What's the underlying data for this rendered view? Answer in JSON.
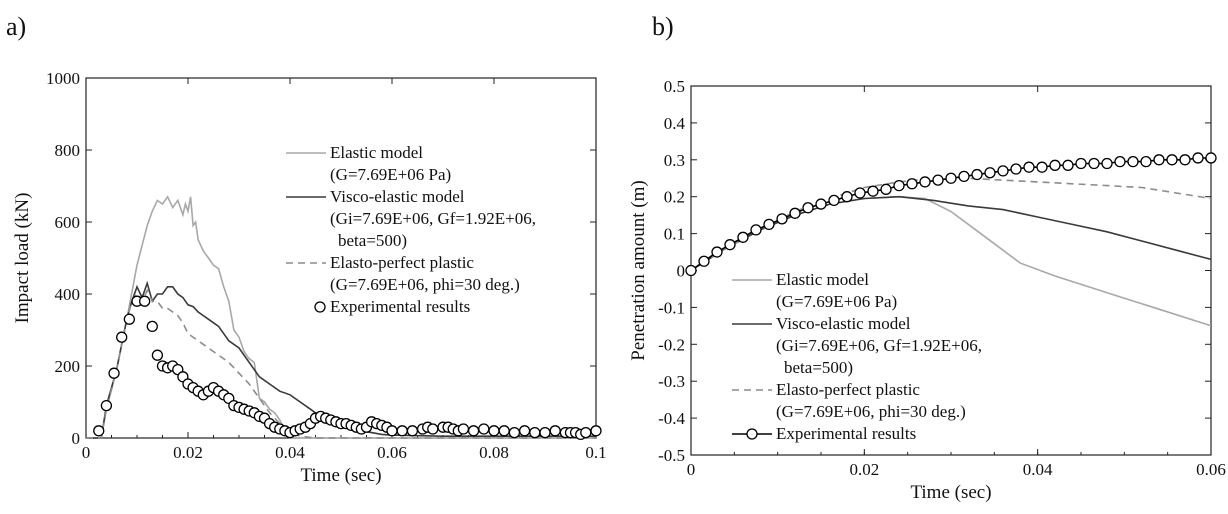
{
  "panels": [
    {
      "label": "a)"
    },
    {
      "label": "b)"
    }
  ],
  "chart_data": [
    {
      "type": "line",
      "xlabel": "Time (sec)",
      "ylabel": "Impact load (kN)",
      "xlim": [
        0,
        0.1
      ],
      "ylim": [
        0,
        1000
      ],
      "xticks": [
        0,
        0.02,
        0.04,
        0.06,
        0.08,
        0.1
      ],
      "xtick_labels": [
        "0",
        "0.02",
        "0.04",
        "0.06",
        "0.08",
        "0.1"
      ],
      "yticks": [
        0,
        200,
        400,
        600,
        800,
        1000
      ],
      "ytick_labels": [
        "0",
        "200",
        "400",
        "600",
        "800",
        "1000"
      ],
      "grid": false,
      "legend_position": "top-right",
      "legend": [
        {
          "series": 0,
          "lines": [
            "Elastic model",
            "(G=7.69E+06 Pa)"
          ]
        },
        {
          "series": 1,
          "lines": [
            "Visco-elastic model",
            "(Gi=7.69E+06, Gf=1.92E+06,",
            "beta=500)"
          ]
        },
        {
          "series": 2,
          "lines": [
            "Elasto-perfect plastic",
            "(G=7.69E+06, phi=30 deg.)"
          ]
        },
        {
          "series": 3,
          "lines": [
            "Experimental results"
          ]
        }
      ],
      "series": [
        {
          "name": "Elastic model",
          "color": "#a8a8a8",
          "style": "solid",
          "x": [
            0,
            0.003,
            0.004,
            0.006,
            0.008,
            0.01,
            0.012,
            0.013,
            0.014,
            0.015,
            0.016,
            0.017,
            0.018,
            0.019,
            0.0195,
            0.02,
            0.0205,
            0.021,
            0.0215,
            0.022,
            0.023,
            0.024,
            0.025,
            0.026,
            0.027,
            0.028,
            0.029,
            0.03,
            0.031,
            0.032,
            0.033,
            0.034,
            0.035,
            0.036,
            0.037,
            0.038,
            0.039,
            0.04,
            0.041,
            0.045,
            0.05,
            0.06,
            0.1
          ],
          "y": [
            0,
            0,
            80,
            190,
            330,
            480,
            590,
            630,
            660,
            650,
            670,
            640,
            660,
            620,
            650,
            630,
            670,
            590,
            600,
            550,
            520,
            500,
            480,
            470,
            420,
            380,
            300,
            280,
            240,
            220,
            210,
            110,
            100,
            80,
            70,
            50,
            20,
            0,
            0,
            0,
            0,
            0,
            0
          ]
        },
        {
          "name": "Visco-elastic model",
          "color": "#3a3a3a",
          "style": "solid",
          "x": [
            0,
            0.003,
            0.004,
            0.006,
            0.008,
            0.009,
            0.01,
            0.011,
            0.012,
            0.013,
            0.014,
            0.015,
            0.016,
            0.017,
            0.018,
            0.019,
            0.02,
            0.021,
            0.022,
            0.023,
            0.024,
            0.025,
            0.026,
            0.027,
            0.028,
            0.03,
            0.032,
            0.034,
            0.036,
            0.038,
            0.04,
            0.042,
            0.044,
            0.046,
            0.048,
            0.05,
            0.052,
            0.054,
            0.056,
            0.058,
            0.06,
            0.07,
            0.08,
            0.1
          ],
          "y": [
            0,
            0,
            90,
            190,
            330,
            380,
            420,
            390,
            430,
            380,
            400,
            400,
            420,
            420,
            400,
            390,
            370,
            365,
            350,
            340,
            330,
            320,
            310,
            290,
            270,
            250,
            210,
            170,
            150,
            130,
            120,
            100,
            80,
            60,
            45,
            40,
            30,
            20,
            15,
            10,
            8,
            5,
            5,
            5
          ]
        },
        {
          "name": "Elasto-perfect plastic",
          "color": "#8c8c8c",
          "style": "dashed",
          "x": [
            0,
            0.003,
            0.004,
            0.006,
            0.008,
            0.009,
            0.01,
            0.011,
            0.012,
            0.013,
            0.014,
            0.015,
            0.016,
            0.017,
            0.018,
            0.019,
            0.02,
            0.022,
            0.024,
            0.026,
            0.028,
            0.03,
            0.032,
            0.034,
            0.036,
            0.038,
            0.04,
            0.042,
            0.045,
            0.1
          ],
          "y": [
            0,
            0,
            80,
            190,
            330,
            380,
            400,
            380,
            410,
            380,
            380,
            360,
            360,
            350,
            340,
            320,
            290,
            270,
            250,
            230,
            210,
            180,
            150,
            110,
            70,
            40,
            15,
            5,
            0,
            0
          ]
        },
        {
          "name": "Experimental results",
          "color": "#000000",
          "style": "markers",
          "x": [
            0.0025,
            0.004,
            0.0055,
            0.007,
            0.0085,
            0.01,
            0.0115,
            0.013,
            0.014,
            0.015,
            0.016,
            0.017,
            0.018,
            0.019,
            0.02,
            0.021,
            0.022,
            0.023,
            0.024,
            0.025,
            0.026,
            0.027,
            0.028,
            0.029,
            0.03,
            0.031,
            0.032,
            0.033,
            0.034,
            0.035,
            0.036,
            0.037,
            0.038,
            0.039,
            0.04,
            0.041,
            0.042,
            0.043,
            0.044,
            0.045,
            0.046,
            0.047,
            0.048,
            0.049,
            0.05,
            0.051,
            0.052,
            0.053,
            0.054,
            0.055,
            0.056,
            0.057,
            0.058,
            0.059,
            0.06,
            0.062,
            0.064,
            0.066,
            0.067,
            0.068,
            0.07,
            0.071,
            0.072,
            0.073,
            0.074,
            0.076,
            0.078,
            0.08,
            0.082,
            0.084,
            0.086,
            0.088,
            0.09,
            0.092,
            0.094,
            0.095,
            0.096,
            0.097,
            0.098,
            0.1
          ],
          "y": [
            20,
            90,
            180,
            280,
            330,
            380,
            380,
            310,
            230,
            200,
            195,
            200,
            190,
            170,
            150,
            140,
            130,
            120,
            130,
            140,
            130,
            120,
            110,
            90,
            85,
            80,
            75,
            70,
            60,
            55,
            40,
            30,
            25,
            20,
            15,
            20,
            25,
            30,
            40,
            55,
            60,
            55,
            50,
            45,
            40,
            40,
            35,
            30,
            25,
            30,
            45,
            40,
            35,
            30,
            20,
            20,
            20,
            25,
            30,
            25,
            30,
            30,
            25,
            20,
            25,
            20,
            25,
            20,
            20,
            15,
            20,
            15,
            15,
            20,
            15,
            15,
            15,
            10,
            15,
            20
          ]
        }
      ]
    },
    {
      "type": "line",
      "xlabel": "Time (sec)",
      "ylabel": "Penetration amount (m)",
      "xlim": [
        0,
        0.06
      ],
      "ylim": [
        -0.5,
        0.5
      ],
      "xticks": [
        0,
        0.02,
        0.04,
        0.06
      ],
      "xtick_labels": [
        "0",
        "0.02",
        "0.04",
        "0.06"
      ],
      "yticks": [
        0.5,
        0.4,
        0.3,
        0.2,
        0.1,
        0,
        -0.1,
        -0.2,
        -0.3,
        -0.4,
        -0.5
      ],
      "ytick_labels": [
        "0.5",
        "0.4",
        "0.3",
        "0.2",
        "0.1",
        "0",
        "-0.1",
        "-0.2",
        "-0.3",
        "-0.4",
        "-0.5"
      ],
      "grid": false,
      "legend_position": "bottom-left",
      "legend": [
        {
          "series": 0,
          "lines": [
            "Elastic model",
            "(G=7.69E+06 Pa)"
          ]
        },
        {
          "series": 1,
          "lines": [
            "Visco-elastic model",
            "(Gi=7.69E+06, Gf=1.92E+06,",
            "beta=500)"
          ]
        },
        {
          "series": 2,
          "lines": [
            "Elasto-perfect plastic",
            "(G=7.69E+06, phi=30 deg.)"
          ]
        },
        {
          "series": 3,
          "lines": [
            "Experimental results"
          ]
        }
      ],
      "series": [
        {
          "name": "Elastic model",
          "color": "#a8a8a8",
          "style": "solid",
          "x": [
            0,
            0.004,
            0.008,
            0.012,
            0.016,
            0.02,
            0.024,
            0.027,
            0.03,
            0.034,
            0.038,
            0.042,
            0.046,
            0.05,
            0.054,
            0.058,
            0.06
          ],
          "y": [
            0,
            0.06,
            0.11,
            0.15,
            0.18,
            0.195,
            0.2,
            0.195,
            0.16,
            0.09,
            0.02,
            -0.015,
            -0.045,
            -0.075,
            -0.105,
            -0.135,
            -0.15
          ]
        },
        {
          "name": "Visco-elastic model",
          "color": "#3a3a3a",
          "style": "solid",
          "x": [
            0,
            0.004,
            0.008,
            0.012,
            0.016,
            0.02,
            0.024,
            0.028,
            0.032,
            0.036,
            0.04,
            0.044,
            0.048,
            0.052,
            0.056,
            0.06
          ],
          "y": [
            0,
            0.06,
            0.11,
            0.15,
            0.18,
            0.195,
            0.2,
            0.19,
            0.175,
            0.165,
            0.145,
            0.125,
            0.105,
            0.08,
            0.055,
            0.03
          ]
        },
        {
          "name": "Elasto-perfect plastic",
          "color": "#8c8c8c",
          "style": "dashed",
          "x": [
            0,
            0.004,
            0.008,
            0.012,
            0.016,
            0.02,
            0.024,
            0.028,
            0.032,
            0.036,
            0.04,
            0.044,
            0.048,
            0.052,
            0.056,
            0.06
          ],
          "y": [
            0,
            0.06,
            0.11,
            0.16,
            0.195,
            0.225,
            0.24,
            0.25,
            0.25,
            0.245,
            0.24,
            0.235,
            0.23,
            0.225,
            0.21,
            0.195
          ]
        },
        {
          "name": "Experimental results",
          "color": "#000000",
          "style": "line-markers",
          "x": [
            0,
            0.0015,
            0.003,
            0.0045,
            0.006,
            0.0075,
            0.009,
            0.0105,
            0.012,
            0.0135,
            0.015,
            0.0165,
            0.018,
            0.0195,
            0.021,
            0.0225,
            0.024,
            0.0255,
            0.027,
            0.0285,
            0.03,
            0.0315,
            0.033,
            0.0345,
            0.036,
            0.0375,
            0.039,
            0.0405,
            0.042,
            0.0435,
            0.045,
            0.0465,
            0.048,
            0.0495,
            0.051,
            0.0525,
            0.054,
            0.0555,
            0.057,
            0.0585,
            0.06
          ],
          "y": [
            0,
            0.025,
            0.05,
            0.07,
            0.09,
            0.11,
            0.125,
            0.14,
            0.155,
            0.17,
            0.18,
            0.19,
            0.2,
            0.21,
            0.215,
            0.22,
            0.23,
            0.235,
            0.24,
            0.245,
            0.25,
            0.255,
            0.26,
            0.265,
            0.27,
            0.275,
            0.28,
            0.28,
            0.285,
            0.285,
            0.29,
            0.29,
            0.29,
            0.295,
            0.295,
            0.295,
            0.3,
            0.3,
            0.3,
            0.305,
            0.305
          ]
        }
      ]
    }
  ]
}
